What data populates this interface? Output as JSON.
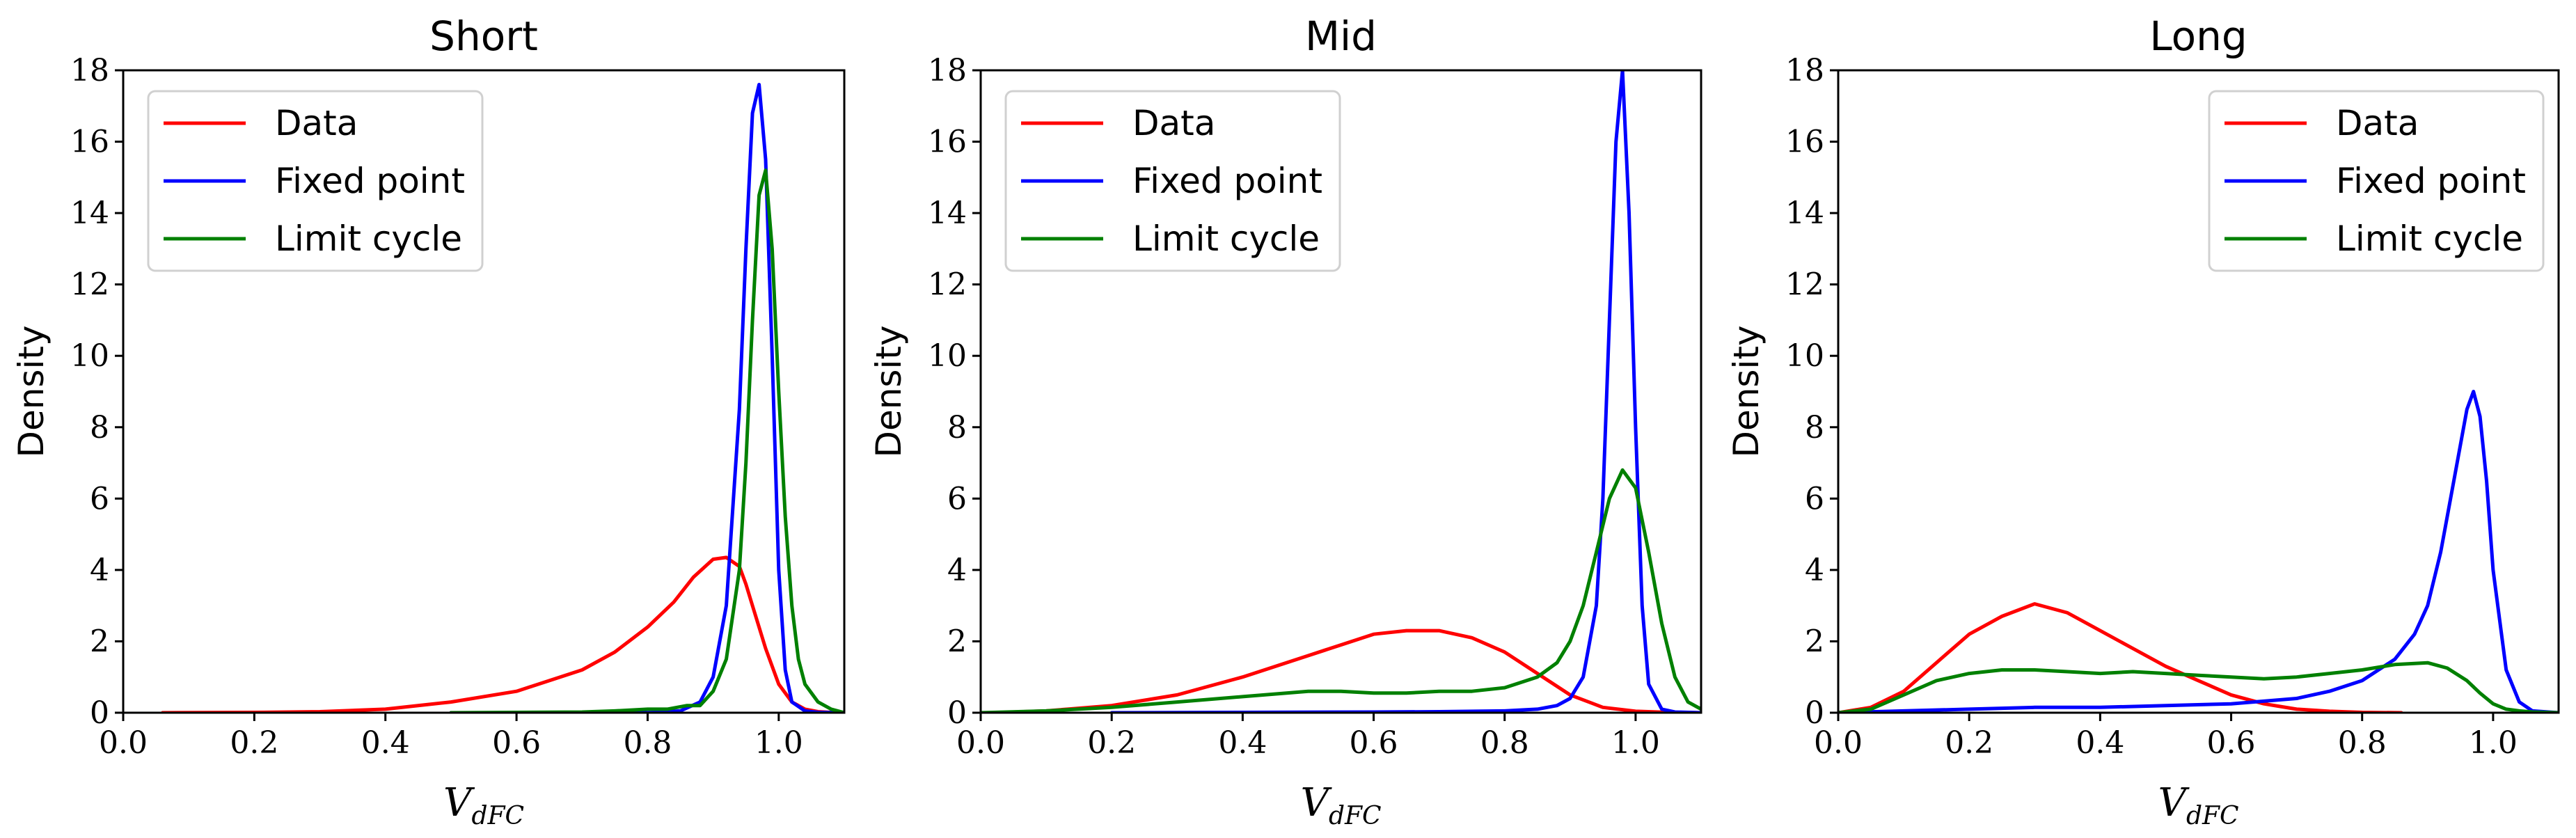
{
  "chart_data": [
    {
      "type": "line",
      "title": "Short",
      "xlabel": "V",
      "xlabel_sub": "dFC",
      "ylabel": "Density",
      "xlim": [
        0.0,
        1.1
      ],
      "ylim": [
        0,
        18
      ],
      "xticks": [
        "0.0",
        "0.2",
        "0.4",
        "0.6",
        "0.8",
        "1.0"
      ],
      "yticks": [
        "0",
        "2",
        "4",
        "6",
        "8",
        "10",
        "12",
        "14",
        "16",
        "18"
      ],
      "grid": false,
      "legend_position": "top-left",
      "series": [
        {
          "name": "Data",
          "color": "#ff0000",
          "x": [
            0.06,
            0.2,
            0.3,
            0.4,
            0.5,
            0.6,
            0.65,
            0.7,
            0.75,
            0.8,
            0.84,
            0.87,
            0.9,
            0.92,
            0.94,
            0.95,
            0.96,
            0.98,
            1.0,
            1.02,
            1.04,
            1.06,
            1.08,
            1.1
          ],
          "y": [
            0.0,
            0.01,
            0.03,
            0.1,
            0.3,
            0.6,
            0.9,
            1.2,
            1.7,
            2.4,
            3.1,
            3.8,
            4.3,
            4.35,
            4.1,
            3.6,
            3.0,
            1.8,
            0.8,
            0.3,
            0.1,
            0.03,
            0.01,
            0.0
          ]
        },
        {
          "name": "Fixed point",
          "color": "#0000ff",
          "x": [
            0.5,
            0.8,
            0.85,
            0.88,
            0.9,
            0.92,
            0.94,
            0.95,
            0.96,
            0.97,
            0.98,
            0.99,
            1.0,
            1.01,
            1.02,
            1.04,
            1.06,
            1.1
          ],
          "y": [
            0.0,
            0.0,
            0.05,
            0.3,
            1.0,
            3.0,
            8.5,
            13.0,
            16.8,
            17.6,
            15.5,
            10.0,
            4.0,
            1.2,
            0.3,
            0.05,
            0.01,
            0.0
          ]
        },
        {
          "name": "Limit cycle",
          "color": "#008000",
          "x": [
            0.5,
            0.6,
            0.7,
            0.75,
            0.8,
            0.83,
            0.86,
            0.88,
            0.9,
            0.92,
            0.94,
            0.95,
            0.96,
            0.97,
            0.98,
            0.99,
            1.0,
            1.01,
            1.02,
            1.03,
            1.04,
            1.06,
            1.08,
            1.1
          ],
          "y": [
            0.0,
            0.01,
            0.02,
            0.05,
            0.1,
            0.1,
            0.2,
            0.2,
            0.6,
            1.5,
            4.0,
            7.0,
            11.0,
            14.5,
            15.2,
            13.0,
            9.0,
            5.5,
            3.0,
            1.5,
            0.8,
            0.3,
            0.1,
            0.0
          ]
        }
      ]
    },
    {
      "type": "line",
      "title": "Mid",
      "xlabel": "V",
      "xlabel_sub": "dFC",
      "ylabel": "Density",
      "xlim": [
        0.0,
        1.1
      ],
      "ylim": [
        0,
        18
      ],
      "xticks": [
        "0.0",
        "0.2",
        "0.4",
        "0.6",
        "0.8",
        "1.0"
      ],
      "yticks": [
        "0",
        "2",
        "4",
        "6",
        "8",
        "10",
        "12",
        "14",
        "16",
        "18"
      ],
      "grid": false,
      "legend_position": "top-left",
      "series": [
        {
          "name": "Data",
          "color": "#ff0000",
          "x": [
            0.02,
            0.1,
            0.2,
            0.3,
            0.4,
            0.5,
            0.55,
            0.6,
            0.65,
            0.7,
            0.75,
            0.8,
            0.85,
            0.9,
            0.95,
            1.0,
            1.05,
            1.1
          ],
          "y": [
            0.0,
            0.05,
            0.2,
            0.5,
            1.0,
            1.6,
            1.9,
            2.2,
            2.3,
            2.3,
            2.1,
            1.7,
            1.1,
            0.5,
            0.15,
            0.04,
            0.01,
            0.0
          ]
        },
        {
          "name": "Fixed point",
          "color": "#0000ff",
          "x": [
            0.2,
            0.4,
            0.6,
            0.7,
            0.8,
            0.85,
            0.88,
            0.9,
            0.92,
            0.94,
            0.95,
            0.96,
            0.97,
            0.98,
            0.99,
            1.0,
            1.01,
            1.02,
            1.04,
            1.06,
            1.1
          ],
          "y": [
            0.0,
            0.01,
            0.02,
            0.03,
            0.05,
            0.1,
            0.2,
            0.4,
            1.0,
            3.0,
            6.0,
            11.0,
            16.0,
            18.0,
            14.0,
            8.0,
            3.0,
            0.8,
            0.1,
            0.02,
            0.0
          ]
        },
        {
          "name": "Limit cycle",
          "color": "#008000",
          "x": [
            0.0,
            0.1,
            0.2,
            0.3,
            0.4,
            0.5,
            0.55,
            0.6,
            0.65,
            0.7,
            0.75,
            0.8,
            0.85,
            0.88,
            0.9,
            0.92,
            0.94,
            0.96,
            0.98,
            1.0,
            1.02,
            1.04,
            1.06,
            1.08,
            1.1
          ],
          "y": [
            0.0,
            0.05,
            0.15,
            0.3,
            0.45,
            0.6,
            0.6,
            0.55,
            0.55,
            0.6,
            0.6,
            0.7,
            1.0,
            1.4,
            2.0,
            3.0,
            4.5,
            6.0,
            6.8,
            6.3,
            4.5,
            2.5,
            1.0,
            0.3,
            0.1
          ]
        }
      ]
    },
    {
      "type": "line",
      "title": "Long",
      "xlabel": "V",
      "xlabel_sub": "dFC",
      "ylabel": "Density",
      "xlim": [
        0.0,
        1.1
      ],
      "ylim": [
        0,
        18
      ],
      "xticks": [
        "0.0",
        "0.2",
        "0.4",
        "0.6",
        "0.8",
        "1.0"
      ],
      "yticks": [
        "0",
        "2",
        "4",
        "6",
        "8",
        "10",
        "12",
        "14",
        "16",
        "18"
      ],
      "grid": false,
      "legend_position": "top-right",
      "series": [
        {
          "name": "Data",
          "color": "#ff0000",
          "x": [
            0.0,
            0.05,
            0.1,
            0.15,
            0.2,
            0.25,
            0.3,
            0.35,
            0.4,
            0.45,
            0.5,
            0.55,
            0.6,
            0.65,
            0.7,
            0.75,
            0.8,
            0.86
          ],
          "y": [
            0.0,
            0.15,
            0.6,
            1.4,
            2.2,
            2.7,
            3.05,
            2.8,
            2.3,
            1.8,
            1.3,
            0.9,
            0.5,
            0.25,
            0.1,
            0.04,
            0.01,
            0.0
          ]
        },
        {
          "name": "Fixed point",
          "color": "#0000ff",
          "x": [
            0.0,
            0.1,
            0.2,
            0.3,
            0.4,
            0.5,
            0.6,
            0.7,
            0.75,
            0.8,
            0.85,
            0.88,
            0.9,
            0.92,
            0.94,
            0.96,
            0.97,
            0.98,
            0.99,
            1.0,
            1.02,
            1.04,
            1.06,
            1.1
          ],
          "y": [
            0.0,
            0.05,
            0.1,
            0.15,
            0.15,
            0.2,
            0.25,
            0.4,
            0.6,
            0.9,
            1.5,
            2.2,
            3.0,
            4.5,
            6.5,
            8.5,
            9.0,
            8.3,
            6.5,
            4.0,
            1.2,
            0.3,
            0.05,
            0.0
          ]
        },
        {
          "name": "Limit cycle",
          "color": "#008000",
          "x": [
            0.0,
            0.05,
            0.1,
            0.15,
            0.2,
            0.25,
            0.3,
            0.35,
            0.4,
            0.45,
            0.5,
            0.55,
            0.6,
            0.65,
            0.7,
            0.75,
            0.8,
            0.85,
            0.9,
            0.93,
            0.96,
            0.98,
            1.0,
            1.02,
            1.04,
            1.06,
            1.1
          ],
          "y": [
            0.0,
            0.1,
            0.5,
            0.9,
            1.1,
            1.2,
            1.2,
            1.15,
            1.1,
            1.15,
            1.1,
            1.05,
            1.0,
            0.95,
            1.0,
            1.1,
            1.2,
            1.35,
            1.4,
            1.25,
            0.9,
            0.55,
            0.25,
            0.1,
            0.05,
            0.02,
            0.0
          ]
        }
      ]
    }
  ]
}
